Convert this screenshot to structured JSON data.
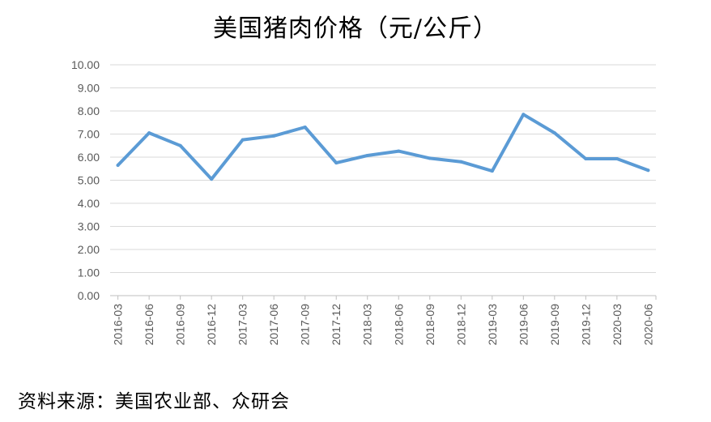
{
  "chart_data": {
    "type": "line",
    "title": "美国猪肉价格（元/公斤）",
    "xlabel": "",
    "ylabel": "",
    "categories": [
      "2016-03",
      "2016-06",
      "2016-09",
      "2016-12",
      "2017-03",
      "2017-06",
      "2017-09",
      "2017-12",
      "2018-03",
      "2018-06",
      "2018-09",
      "2018-12",
      "2019-03",
      "2019-06",
      "2019-09",
      "2019-12",
      "2020-03",
      "2020-06"
    ],
    "values": [
      5.65,
      7.05,
      6.5,
      5.05,
      6.75,
      6.92,
      7.3,
      5.75,
      6.07,
      6.26,
      5.95,
      5.8,
      5.4,
      7.85,
      7.05,
      5.93,
      5.93,
      5.43
    ],
    "ylim": [
      0,
      10
    ],
    "yticks": [
      "0.00",
      "1.00",
      "2.00",
      "3.00",
      "4.00",
      "5.00",
      "6.00",
      "7.00",
      "8.00",
      "9.00",
      "10.00"
    ],
    "grid": true,
    "legend": "none",
    "line_color": "#5b9bd5"
  },
  "source": "资料来源：美国农业部、众研会"
}
